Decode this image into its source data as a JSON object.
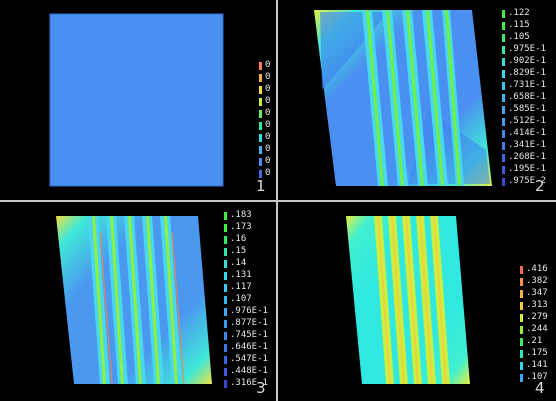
{
  "panes": [
    {
      "number": "1",
      "legend": [
        {
          "label": "0",
          "color": "#ff7a50"
        },
        {
          "label": "0",
          "color": "#ffb040"
        },
        {
          "label": "0",
          "color": "#f0e040"
        },
        {
          "label": "0",
          "color": "#c8f040"
        },
        {
          "label": "0",
          "color": "#60f060"
        },
        {
          "label": "0",
          "color": "#30e8a0"
        },
        {
          "label": "0",
          "color": "#30e0e0"
        },
        {
          "label": "0",
          "color": "#40b8f0"
        },
        {
          "label": "0",
          "color": "#4090f0"
        },
        {
          "label": "0",
          "color": "#4070e8"
        }
      ]
    },
    {
      "number": "2",
      "legend": [
        {
          "label": ".122",
          "color": "#40f040"
        },
        {
          "label": ".115",
          "color": "#40f040"
        },
        {
          "label": ".105",
          "color": "#38e870"
        },
        {
          "label": ".975E-1",
          "color": "#30e8a8"
        },
        {
          "label": ".902E-1",
          "color": "#30e0d8"
        },
        {
          "label": ".829E-1",
          "color": "#30d8f0"
        },
        {
          "label": ".731E-1",
          "color": "#38c8f0"
        },
        {
          "label": ".658E-1",
          "color": "#38b8f0"
        },
        {
          "label": ".585E-1",
          "color": "#40a8f0"
        },
        {
          "label": ".512E-1",
          "color": "#4098f0"
        },
        {
          "label": ".414E-1",
          "color": "#4088f0"
        },
        {
          "label": ".341E-1",
          "color": "#4078e8"
        },
        {
          "label": ".268E-1",
          "color": "#4068e8"
        },
        {
          "label": ".195E-1",
          "color": "#4058e0"
        },
        {
          "label": ".975E-2",
          "color": "#4048d8"
        }
      ]
    },
    {
      "number": "3",
      "legend": [
        {
          "label": ".183",
          "color": "#40f040"
        },
        {
          "label": ".173",
          "color": "#40f040"
        },
        {
          "label": ".16",
          "color": "#38e870"
        },
        {
          "label": ".15",
          "color": "#30e8a8"
        },
        {
          "label": ".14",
          "color": "#30e0d8"
        },
        {
          "label": ".131",
          "color": "#30d8f0"
        },
        {
          "label": ".117",
          "color": "#38c8f0"
        },
        {
          "label": ".107",
          "color": "#38b8f0"
        },
        {
          "label": ".976E-1",
          "color": "#40a8f0"
        },
        {
          "label": ".877E-1",
          "color": "#4098f0"
        },
        {
          "label": ".745E-1",
          "color": "#4088f0"
        },
        {
          "label": ".646E-1",
          "color": "#4078e8"
        },
        {
          "label": ".547E-1",
          "color": "#4068e8"
        },
        {
          "label": ".448E-1",
          "color": "#4058e0"
        },
        {
          "label": ".316E-1",
          "color": "#4048d8"
        }
      ]
    },
    {
      "number": "4",
      "legend": [
        {
          "label": ".416",
          "color": "#ff6a50"
        },
        {
          "label": ".382",
          "color": "#ff9050"
        },
        {
          "label": ".347",
          "color": "#ffb048"
        },
        {
          "label": ".313",
          "color": "#f0d040"
        },
        {
          "label": ".279",
          "color": "#d0f040"
        },
        {
          "label": ".244",
          "color": "#90f040"
        },
        {
          "label": ".21",
          "color": "#40f060"
        },
        {
          "label": ".175",
          "color": "#30e8c0"
        },
        {
          "label": ".141",
          "color": "#30d8f0"
        },
        {
          "label": ".107",
          "color": "#40a8f0"
        }
      ]
    }
  ]
}
